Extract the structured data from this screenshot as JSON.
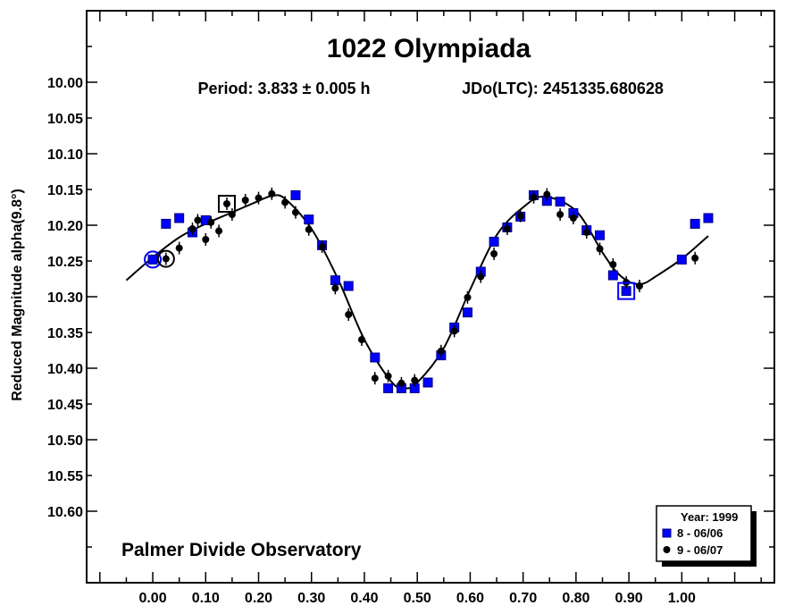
{
  "chart_data": {
    "type": "scatter",
    "title": "1022 Olympiada",
    "subtitle_period": "Period: 3.833 ± 0.005 h",
    "subtitle_epoch": "JDo(LTC): 2451335.680628",
    "ylabel": "Reduced Magnitude alpha(9.8°)",
    "xlabel": "",
    "annotation": "Palmer Divide Observatory",
    "xlim": [
      -0.125,
      1.175
    ],
    "ylim": [
      10.7,
      9.9
    ],
    "y_inverted": true,
    "x_ticks": [
      "0.00",
      "0.10",
      "0.20",
      "0.30",
      "0.40",
      "0.50",
      "0.60",
      "0.70",
      "0.80",
      "0.90",
      "1.00"
    ],
    "x_tick_values": [
      0,
      0.1,
      0.2,
      0.3,
      0.4,
      0.5,
      0.6,
      0.7,
      0.8,
      0.9,
      1.0
    ],
    "y_ticks": [
      "10.00",
      "10.05",
      "10.10",
      "10.15",
      "10.20",
      "10.25",
      "10.30",
      "10.35",
      "10.40",
      "10.45",
      "10.50",
      "10.55",
      "10.60"
    ],
    "y_tick_values": [
      10.0,
      10.05,
      10.1,
      10.15,
      10.2,
      10.25,
      10.3,
      10.35,
      10.4,
      10.45,
      10.5,
      10.55,
      10.6
    ],
    "legend": {
      "title": "Year: 1999",
      "placement": "bottom-right",
      "entries": [
        "8 - 06/06",
        "9 - 06/07"
      ]
    },
    "series": [
      {
        "name": "8 - 06/06",
        "marker": "square",
        "color": "#0000ff",
        "x": [
          0.0,
          0.025,
          0.05,
          0.075,
          0.1,
          0.27,
          0.295,
          0.32,
          0.345,
          0.37,
          0.42,
          0.445,
          0.47,
          0.495,
          0.52,
          0.545,
          0.57,
          0.595,
          0.62,
          0.645,
          0.67,
          0.695,
          0.72,
          0.745,
          0.77,
          0.795,
          0.82,
          0.845,
          0.87,
          0.895,
          1.0,
          1.025,
          1.05
        ],
        "y": [
          10.248,
          10.198,
          10.19,
          10.21,
          10.193,
          10.158,
          10.192,
          10.228,
          10.277,
          10.285,
          10.385,
          10.428,
          10.428,
          10.428,
          10.42,
          10.382,
          10.343,
          10.322,
          10.265,
          10.223,
          10.203,
          10.188,
          10.158,
          10.166,
          10.167,
          10.183,
          10.207,
          10.214,
          10.27,
          10.292,
          10.248,
          10.198,
          10.19
        ]
      },
      {
        "name": "9 - 06/07",
        "marker": "circle",
        "color": "#000000",
        "x": [
          0.025,
          0.05,
          0.075,
          0.085,
          0.1,
          0.11,
          0.125,
          0.14,
          0.15,
          0.175,
          0.2,
          0.225,
          0.25,
          0.27,
          0.295,
          0.32,
          0.345,
          0.37,
          0.395,
          0.42,
          0.445,
          0.47,
          0.495,
          0.545,
          0.57,
          0.595,
          0.62,
          0.645,
          0.67,
          0.695,
          0.72,
          0.745,
          0.77,
          0.795,
          0.82,
          0.845,
          0.87,
          0.895,
          0.92,
          1.025
        ],
        "y": [
          10.247,
          10.232,
          10.205,
          10.193,
          10.22,
          10.196,
          10.208,
          10.17,
          10.185,
          10.165,
          10.162,
          10.156,
          10.168,
          10.182,
          10.206,
          10.23,
          10.288,
          10.325,
          10.36,
          10.414,
          10.411,
          10.421,
          10.417,
          10.376,
          10.348,
          10.301,
          10.272,
          10.24,
          10.205,
          10.187,
          10.161,
          10.157,
          10.185,
          10.19,
          10.21,
          10.233,
          10.255,
          10.28,
          10.285,
          10.246
        ]
      }
    ],
    "fit_curve": {
      "x": [
        -0.05,
        0.0,
        0.05,
        0.1,
        0.15,
        0.2,
        0.225,
        0.25,
        0.3,
        0.35,
        0.4,
        0.45,
        0.475,
        0.5,
        0.55,
        0.6,
        0.65,
        0.7,
        0.74,
        0.8,
        0.85,
        0.875,
        0.9,
        0.925,
        0.95,
        1.0,
        1.05
      ],
      "y": [
        10.277,
        10.245,
        10.217,
        10.198,
        10.182,
        10.166,
        10.159,
        10.163,
        10.205,
        10.275,
        10.36,
        10.418,
        10.428,
        10.42,
        10.372,
        10.29,
        10.214,
        10.175,
        10.16,
        10.18,
        10.238,
        10.264,
        10.279,
        10.282,
        10.272,
        10.247,
        10.215
      ]
    },
    "highlighted_points": [
      {
        "x": 0.0,
        "y": 10.248,
        "shape": "circle",
        "color": "#0000ff"
      },
      {
        "x": 0.025,
        "y": 10.247,
        "shape": "circle",
        "color": "#000000"
      },
      {
        "x": 0.14,
        "y": 10.17,
        "shape": "square",
        "color": "#000000"
      },
      {
        "x": 0.895,
        "y": 10.292,
        "shape": "square",
        "color": "#0000ff"
      }
    ]
  }
}
